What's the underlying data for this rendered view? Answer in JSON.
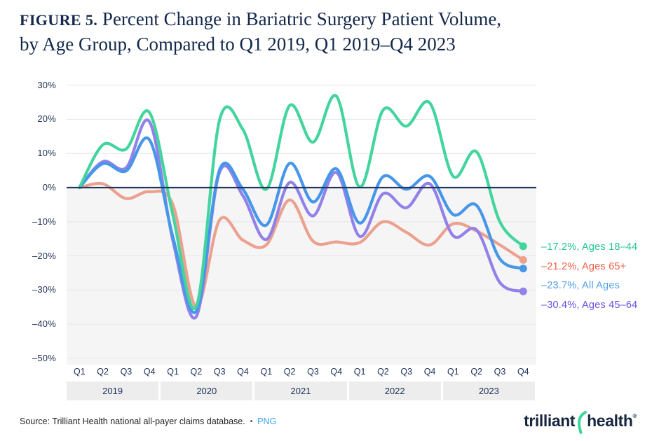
{
  "header": {
    "figure_label": "FIGURE 5.",
    "title_line1": " Percent Change in Bariatric Surgery Patient Volume,",
    "title_line2": "by Age Group, Compared to Q1 2019, Q1 2019–Q4 2023"
  },
  "chart_data": {
    "type": "line",
    "title": "Percent Change in Bariatric Surgery Patient Volume, by Age Group, Compared to Q1 2019, Q1 2019–Q4 2023",
    "x_quarters": [
      "Q1",
      "Q2",
      "Q3",
      "Q4",
      "Q1",
      "Q2",
      "Q3",
      "Q4",
      "Q1",
      "Q2",
      "Q3",
      "Q4",
      "Q1",
      "Q2",
      "Q3",
      "Q4",
      "Q1",
      "Q2",
      "Q3",
      "Q4"
    ],
    "x_years": [
      "2019",
      "2020",
      "2021",
      "2022",
      "2023"
    ],
    "ylim": [
      -50,
      30
    ],
    "grid": true,
    "zero_line_color": "#24375d",
    "y_ticks": [
      {
        "label": "30%",
        "value": 30
      },
      {
        "label": "20%",
        "value": 20
      },
      {
        "label": "10%",
        "value": 10
      },
      {
        "label": "0%",
        "value": 0
      },
      {
        "label": "–10%",
        "value": -10
      },
      {
        "label": "–20%",
        "value": -20
      },
      {
        "label": "–30%",
        "value": -30
      },
      {
        "label": "–40%",
        "value": -40
      },
      {
        "label": "–50%",
        "value": -50
      }
    ],
    "series": [
      {
        "name": "Ages 65+",
        "color": "#eba18e",
        "values": [
          0,
          1.1,
          -3.2,
          -1.2,
          -5.0,
          -34.9,
          -9.5,
          -15.4,
          -16.8,
          -3.6,
          -15.7,
          -15.9,
          -16.1,
          -10.0,
          -13.1,
          -16.8,
          -10.6,
          -12.7,
          -16.8,
          -21.2
        ]
      },
      {
        "name": "Ages 45–64",
        "color": "#9181e8",
        "values": [
          0,
          7.6,
          5.8,
          19.3,
          -15.5,
          -37.8,
          4.5,
          -2.4,
          -15.2,
          1.5,
          -8.3,
          4.4,
          -14.3,
          -1.8,
          -5.9,
          1.1,
          -14.1,
          -12.4,
          -27.8,
          -30.4
        ]
      },
      {
        "name": "All Ages",
        "color": "#4697e9",
        "values": [
          0,
          7.0,
          4.9,
          14.0,
          -14.5,
          -36.2,
          5.2,
          -0.5,
          -11.0,
          7.1,
          -4.2,
          5.5,
          -10.4,
          3.2,
          -0.5,
          3.3,
          -7.9,
          -5.2,
          -20.9,
          -23.7
        ]
      },
      {
        "name": "Ages 18–44",
        "color": "#43d59d",
        "values": [
          0,
          12.5,
          11.3,
          22.0,
          -8.0,
          -34.8,
          19.8,
          17.0,
          -0.5,
          24.0,
          13.3,
          26.8,
          0.2,
          22.7,
          18.0,
          24.8,
          3.3,
          10.5,
          -10.0,
          -17.2
        ]
      }
    ],
    "legend_position": "right"
  },
  "legend": {
    "entries": [
      {
        "label": "–17.2%, Ages 18–44",
        "color": "#24c492"
      },
      {
        "label": "–21.2%, Ages 65+",
        "color": "#f0604a"
      },
      {
        "label": "–23.7%, All Ages",
        "color": "#4f9fe8"
      },
      {
        "label": "–30.4%, Ages 45–64",
        "color": "#6e50e3"
      }
    ]
  },
  "footer": {
    "source": "Source: Trilliant Health national all-payer claims database.",
    "separator": "•",
    "png_label": "PNG",
    "png_color": "#3aa2ee"
  },
  "logo": {
    "word1": "trilliant",
    "word2": "health",
    "registered": "®",
    "swoosh_color": "#3ed69c"
  },
  "colors": {
    "title_navy": "#13284a",
    "axis_navy": "#1d2f55",
    "gridline": "#e6e6e8",
    "below_zero_fill": "#f5f5f6",
    "year_band_fill": "#ededee"
  }
}
